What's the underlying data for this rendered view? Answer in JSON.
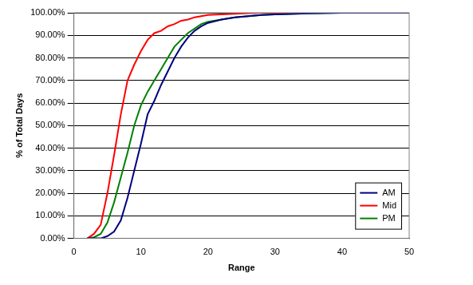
{
  "chart_data": {
    "type": "line",
    "x_label": "Range",
    "y_label": "% of Total Days",
    "x": [
      2,
      3,
      4,
      5,
      6,
      7,
      8,
      9,
      10,
      11,
      12,
      13,
      14,
      15,
      16,
      17,
      18,
      19,
      20,
      22,
      24,
      26,
      28,
      30,
      35,
      40,
      45,
      50
    ],
    "series": [
      {
        "name": "AM",
        "color": "#000080",
        "values": [
          0,
          0,
          0,
          1,
          3,
          8,
          18,
          30,
          42,
          55,
          61,
          68,
          74,
          80,
          85,
          89,
          92,
          94,
          95.5,
          97,
          98,
          98.5,
          99,
          99.3,
          99.7,
          100,
          100,
          100
        ]
      },
      {
        "name": "Mid",
        "color": "#ff0000",
        "values": [
          0,
          2,
          6,
          20,
          37,
          55,
          70,
          77,
          83,
          88,
          91,
          92,
          94,
          95,
          96.5,
          97,
          98,
          98.5,
          99,
          99.3,
          99.6,
          99.8,
          100,
          100,
          100,
          100,
          100,
          100
        ]
      },
      {
        "name": "PM",
        "color": "#008000",
        "values": [
          0,
          0.5,
          2,
          7,
          16,
          27,
          38,
          50,
          59,
          65,
          70,
          75,
          80,
          85,
          88,
          91,
          93,
          95,
          96,
          97,
          98,
          98.5,
          99,
          99.3,
          99.7,
          100,
          100,
          100
        ]
      }
    ],
    "xlim": [
      0,
      50
    ],
    "xticks": [
      0,
      10,
      20,
      30,
      40,
      50
    ],
    "ylim": [
      0,
      100
    ],
    "yticks": [
      {
        "value": 0,
        "label": "0.00%"
      },
      {
        "value": 10,
        "label": "10.00%"
      },
      {
        "value": 20,
        "label": "20.00%"
      },
      {
        "value": 30,
        "label": "30.00%"
      },
      {
        "value": 40,
        "label": "40.00%"
      },
      {
        "value": 50,
        "label": "50.00%"
      },
      {
        "value": 60,
        "label": "60.00%"
      },
      {
        "value": 70,
        "label": "70.00%"
      },
      {
        "value": 80,
        "label": "80.00%"
      },
      {
        "value": 90,
        "label": "90.00%"
      },
      {
        "value": 100,
        "label": "100.00%"
      }
    ],
    "grid": "y",
    "legend": "lower right"
  }
}
